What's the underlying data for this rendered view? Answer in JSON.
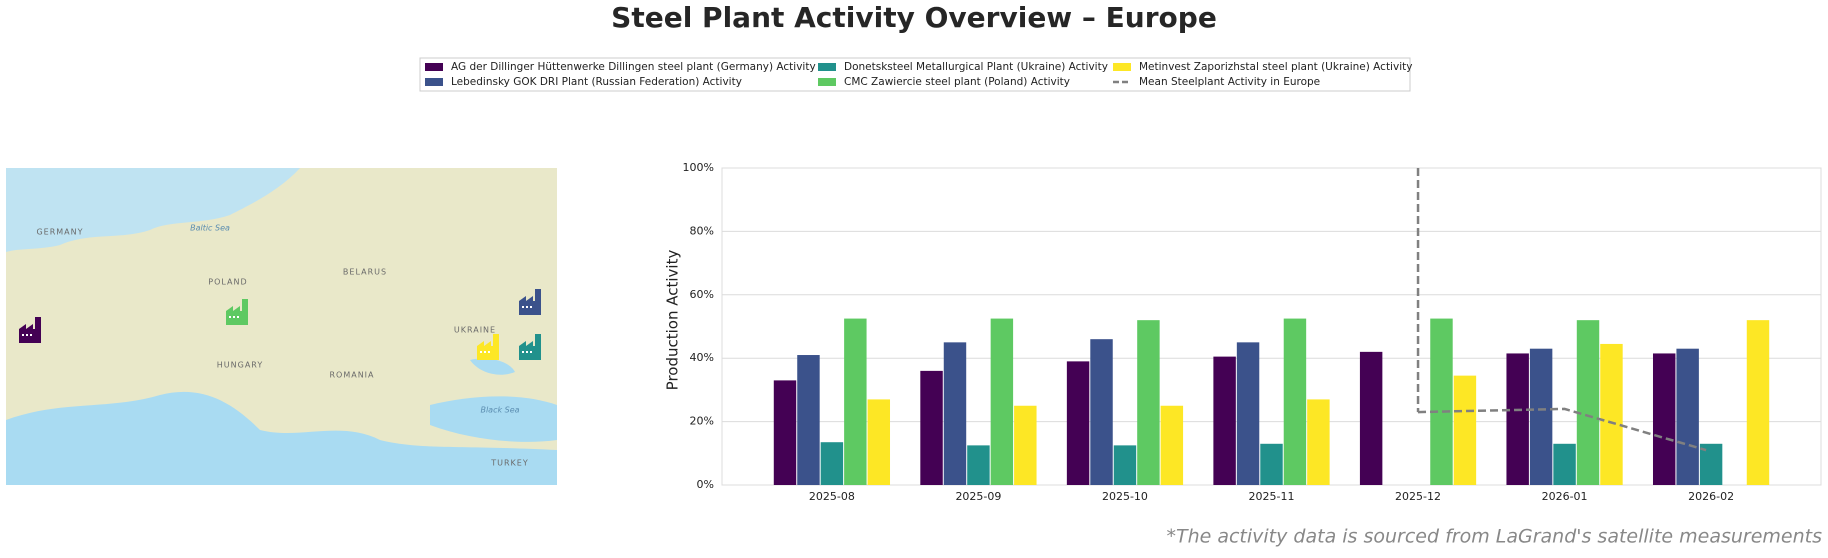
{
  "chart_data": {
    "type": "bar",
    "title": "Steel Plant Activity Overview – Europe",
    "ylabel": "Production Activity",
    "footnote": "*The activity data is sourced from LaGrand's satellite measurements",
    "categories": [
      "2025-08",
      "2025-09",
      "2025-10",
      "2025-11",
      "2025-12",
      "2026-01",
      "2026-02"
    ],
    "ylim": [
      0,
      100
    ],
    "yticks": [
      {
        "value": 0,
        "label": "0%"
      },
      {
        "value": 20,
        "label": "20%"
      },
      {
        "value": 40,
        "label": "40%"
      },
      {
        "value": 60,
        "label": "60%"
      },
      {
        "value": 80,
        "label": "80%"
      },
      {
        "value": 100,
        "label": "100%"
      }
    ],
    "grid": true,
    "series": [
      {
        "name": "AG der Dillinger Hüttenwerke Dillingen steel plant (Germany) Activity",
        "color": "#440154",
        "values": [
          33,
          36,
          39,
          40.5,
          42,
          41.5,
          41.5
        ]
      },
      {
        "name": "Lebedinsky GOK DRI Plant (Russian Federation) Activity",
        "color": "#3b528b",
        "values": [
          41,
          45,
          46,
          45,
          null,
          43,
          43
        ]
      },
      {
        "name": "Donetsksteel Metallurgical Plant (Ukraine) Activity",
        "color": "#21918c",
        "values": [
          13.5,
          12.5,
          12.5,
          13,
          null,
          13,
          13
        ]
      },
      {
        "name": "CMC Zawiercie steel plant (Poland) Activity",
        "color": "#5ec962",
        "values": [
          52.5,
          52.5,
          52,
          52.5,
          52.5,
          52,
          null
        ]
      },
      {
        "name": "Metinvest Zaporizhstal steel plant (Ukraine) Activity",
        "color": "#fde725",
        "values": [
          27,
          25,
          25,
          27,
          34.5,
          44.5,
          52
        ]
      }
    ],
    "mean_line": {
      "name": "Mean Steelplant Activity in Europe",
      "color": "#808080",
      "values": [
        null,
        null,
        null,
        null,
        23,
        24,
        11
      ]
    }
  },
  "map": {
    "labels": [
      "GERMANY",
      "POLAND",
      "BELARUS",
      "UKRAINE",
      "ROMANIA",
      "HUNGARY",
      "TURKEY",
      "Baltic Sea",
      "Black Sea"
    ]
  }
}
